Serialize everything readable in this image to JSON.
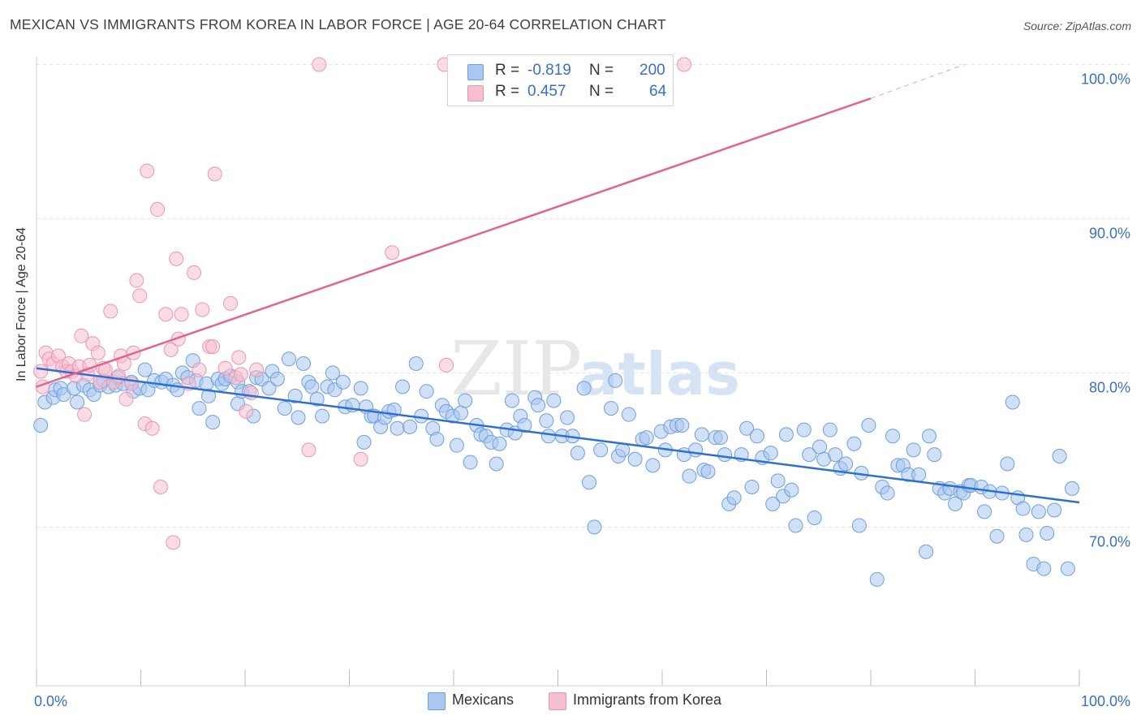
{
  "header": {
    "title": "MEXICAN VS IMMIGRANTS FROM KOREA IN LABOR FORCE | AGE 20-64 CORRELATION CHART",
    "source": "Source: ZipAtlas.com"
  },
  "watermark": {
    "zip": "ZIP",
    "atlas": "atlas"
  },
  "legend_top": {
    "rows": [
      {
        "r_label": "R =",
        "r_value": "-0.819",
        "n_label": "N =",
        "n_value": "200"
      },
      {
        "r_label": "R =",
        "r_value": "0.457",
        "n_label": "N =",
        "n_value": "64"
      }
    ]
  },
  "legend_bottom": {
    "items": [
      {
        "label": "Mexicans"
      },
      {
        "label": "Immigrants from Korea"
      }
    ]
  },
  "colors": {
    "blue_fill": "#a9c7f0",
    "blue_stroke": "#6f9fdc",
    "blue_line": "#2f6fcf",
    "pink_fill": "#f6bfd0",
    "pink_stroke": "#ec95b1",
    "pink_line": "#e06390",
    "tick_label": "#3a6fc4",
    "grid": "#e3e3e3"
  },
  "chart_data": {
    "type": "scatter",
    "title": "MEXICAN VS IMMIGRANTS FROM KOREA IN LABOR FORCE | AGE 20-64 CORRELATION CHART",
    "xlabel": "",
    "ylabel": "In Labor Force | Age 20-64",
    "xlim": [
      0,
      100
    ],
    "ylim": [
      59.7,
      100.5
    ],
    "x_tick_labels": [
      "0.0%",
      "100.0%"
    ],
    "y_ticks": [
      70,
      80,
      90,
      100
    ],
    "y_tick_labels": [
      "70.0%",
      "80.0%",
      "90.0%",
      "100.0%"
    ],
    "grid": true,
    "legend_position": "top-center",
    "series": [
      {
        "name": "Mexicans",
        "r": -0.819,
        "n": 200,
        "trend": {
          "x0": 0,
          "y0": 80.3,
          "x1": 100,
          "y1": 71.6
        },
        "points": [
          [
            0.4,
            76.6
          ],
          [
            0.8,
            78.1
          ],
          [
            1.6,
            78.4
          ],
          [
            1.8,
            78.9
          ],
          [
            2.3,
            79.0
          ],
          [
            2.6,
            78.6
          ],
          [
            3.6,
            79.0
          ],
          [
            3.9,
            78.1
          ],
          [
            4.5,
            79.2
          ],
          [
            5.1,
            78.9
          ],
          [
            5.5,
            78.6
          ],
          [
            6.1,
            79.2
          ],
          [
            6.4,
            79.5
          ],
          [
            6.9,
            79.1
          ],
          [
            7.6,
            79.2
          ],
          [
            7.8,
            79.7
          ],
          [
            8.3,
            79.3
          ],
          [
            9.1,
            79.4
          ],
          [
            9.3,
            78.8
          ],
          [
            9.9,
            79.0
          ],
          [
            10.4,
            80.2
          ],
          [
            10.7,
            78.9
          ],
          [
            11.3,
            79.5
          ],
          [
            12.0,
            79.4
          ],
          [
            12.4,
            79.6
          ],
          [
            13.1,
            79.2
          ],
          [
            13.5,
            78.9
          ],
          [
            14.0,
            80.0
          ],
          [
            14.5,
            79.7
          ],
          [
            15.0,
            80.8
          ],
          [
            15.3,
            79.5
          ],
          [
            15.6,
            77.7
          ],
          [
            16.3,
            79.3
          ],
          [
            16.5,
            78.5
          ],
          [
            16.9,
            76.8
          ],
          [
            17.4,
            79.6
          ],
          [
            17.8,
            79.3
          ],
          [
            18.1,
            79.6
          ],
          [
            18.6,
            79.8
          ],
          [
            19.3,
            79.4
          ],
          [
            19.3,
            78.0
          ],
          [
            19.7,
            78.8
          ],
          [
            20.4,
            78.8
          ],
          [
            20.8,
            77.2
          ],
          [
            21.1,
            79.7
          ],
          [
            21.6,
            79.6
          ],
          [
            22.3,
            79.0
          ],
          [
            22.6,
            80.1
          ],
          [
            23.1,
            79.6
          ],
          [
            23.8,
            77.7
          ],
          [
            24.2,
            80.9
          ],
          [
            24.8,
            78.5
          ],
          [
            25.1,
            77.1
          ],
          [
            25.6,
            80.6
          ],
          [
            26.1,
            79.4
          ],
          [
            26.4,
            79.1
          ],
          [
            26.9,
            78.3
          ],
          [
            27.4,
            77.2
          ],
          [
            27.9,
            79.1
          ],
          [
            28.4,
            80.0
          ],
          [
            28.6,
            78.9
          ],
          [
            29.4,
            79.4
          ],
          [
            29.6,
            77.8
          ],
          [
            30.3,
            77.9
          ],
          [
            31.1,
            79.0
          ],
          [
            31.4,
            75.5
          ],
          [
            31.6,
            77.8
          ],
          [
            32.1,
            77.2
          ],
          [
            32.4,
            77.2
          ],
          [
            33.0,
            76.5
          ],
          [
            33.4,
            77.1
          ],
          [
            33.8,
            77.5
          ],
          [
            34.3,
            77.6
          ],
          [
            34.6,
            76.4
          ],
          [
            35.1,
            79.1
          ],
          [
            35.8,
            76.5
          ],
          [
            36.4,
            80.6
          ],
          [
            36.9,
            77.2
          ],
          [
            37.4,
            78.8
          ],
          [
            38.0,
            76.4
          ],
          [
            38.4,
            75.7
          ],
          [
            38.9,
            77.9
          ],
          [
            39.3,
            77.5
          ],
          [
            39.9,
            77.2
          ],
          [
            40.3,
            75.3
          ],
          [
            40.7,
            77.4
          ],
          [
            41.1,
            78.2
          ],
          [
            41.6,
            74.2
          ],
          [
            42.2,
            76.6
          ],
          [
            42.6,
            76.0
          ],
          [
            43.1,
            75.9
          ],
          [
            43.6,
            75.5
          ],
          [
            44.1,
            74.1
          ],
          [
            44.4,
            75.4
          ],
          [
            45.1,
            76.3
          ],
          [
            45.6,
            78.2
          ],
          [
            45.9,
            76.1
          ],
          [
            46.4,
            77.2
          ],
          [
            46.8,
            76.6
          ],
          [
            47.8,
            78.4
          ],
          [
            48.1,
            77.9
          ],
          [
            48.9,
            76.9
          ],
          [
            49.1,
            75.9
          ],
          [
            49.6,
            78.2
          ],
          [
            50.4,
            75.9
          ],
          [
            50.9,
            77.1
          ],
          [
            51.4,
            75.9
          ],
          [
            51.9,
            74.8
          ],
          [
            52.5,
            79.0
          ],
          [
            53.0,
            72.9
          ],
          [
            53.5,
            70.0
          ],
          [
            54.1,
            75.0
          ],
          [
            55.1,
            77.7
          ],
          [
            55.5,
            79.5
          ],
          [
            55.8,
            74.6
          ],
          [
            56.2,
            75.0
          ],
          [
            56.8,
            77.3
          ],
          [
            57.4,
            74.4
          ],
          [
            58.1,
            75.7
          ],
          [
            58.5,
            75.8
          ],
          [
            59.1,
            74.0
          ],
          [
            59.9,
            76.2
          ],
          [
            60.3,
            75.0
          ],
          [
            60.8,
            76.5
          ],
          [
            61.4,
            76.6
          ],
          [
            61.9,
            76.6
          ],
          [
            62.1,
            74.7
          ],
          [
            62.6,
            73.3
          ],
          [
            63.2,
            75.0
          ],
          [
            63.8,
            76.0
          ],
          [
            64.0,
            73.7
          ],
          [
            64.4,
            73.6
          ],
          [
            65.1,
            75.8
          ],
          [
            65.6,
            75.8
          ],
          [
            66.0,
            74.7
          ],
          [
            66.4,
            71.5
          ],
          [
            66.9,
            71.9
          ],
          [
            67.6,
            74.7
          ],
          [
            68.1,
            76.4
          ],
          [
            68.6,
            72.6
          ],
          [
            69.1,
            75.9
          ],
          [
            69.6,
            74.5
          ],
          [
            70.4,
            74.8
          ],
          [
            70.6,
            71.5
          ],
          [
            71.1,
            73.0
          ],
          [
            71.6,
            72.0
          ],
          [
            71.9,
            76.0
          ],
          [
            72.4,
            72.4
          ],
          [
            72.8,
            70.1
          ],
          [
            73.6,
            76.3
          ],
          [
            74.1,
            74.7
          ],
          [
            74.6,
            70.6
          ],
          [
            75.1,
            75.2
          ],
          [
            75.5,
            74.4
          ],
          [
            76.1,
            76.3
          ],
          [
            76.6,
            74.7
          ],
          [
            77.1,
            73.8
          ],
          [
            77.6,
            74.1
          ],
          [
            78.4,
            75.4
          ],
          [
            78.9,
            70.1
          ],
          [
            79.1,
            73.5
          ],
          [
            79.8,
            76.6
          ],
          [
            80.6,
            66.6
          ],
          [
            81.1,
            72.6
          ],
          [
            81.6,
            72.2
          ],
          [
            82.1,
            75.9
          ],
          [
            82.6,
            74.0
          ],
          [
            83.1,
            74.0
          ],
          [
            83.6,
            73.4
          ],
          [
            84.1,
            75.0
          ],
          [
            84.6,
            73.4
          ],
          [
            85.3,
            68.4
          ],
          [
            85.6,
            75.9
          ],
          [
            86.1,
            74.7
          ],
          [
            86.6,
            72.5
          ],
          [
            87.1,
            72.2
          ],
          [
            87.6,
            72.5
          ],
          [
            88.1,
            71.5
          ],
          [
            88.6,
            72.3
          ],
          [
            88.9,
            72.2
          ],
          [
            89.4,
            72.7
          ],
          [
            89.6,
            72.7
          ],
          [
            90.6,
            72.6
          ],
          [
            90.9,
            71.0
          ],
          [
            91.4,
            72.3
          ],
          [
            92.1,
            69.4
          ],
          [
            92.6,
            72.2
          ],
          [
            93.1,
            74.1
          ],
          [
            93.6,
            78.1
          ],
          [
            94.1,
            71.9
          ],
          [
            94.6,
            71.2
          ],
          [
            94.9,
            69.5
          ],
          [
            95.6,
            67.6
          ],
          [
            96.1,
            71.0
          ],
          [
            96.6,
            67.3
          ],
          [
            96.9,
            69.6
          ],
          [
            97.6,
            71.1
          ],
          [
            98.1,
            74.6
          ],
          [
            98.9,
            67.3
          ],
          [
            99.3,
            72.5
          ]
        ]
      },
      {
        "name": "Immigrants from Korea",
        "r": 0.457,
        "n": 64,
        "trend": {
          "x0": 0,
          "y0": 79.1,
          "x1": 80,
          "y1": 97.8,
          "dash_to_x": 89,
          "dash_to_y": 100.0
        },
        "points": [
          [
            0.4,
            80.1
          ],
          [
            0.6,
            79.1
          ],
          [
            0.9,
            81.3
          ],
          [
            1.2,
            80.9
          ],
          [
            1.6,
            80.6
          ],
          [
            2.1,
            81.1
          ],
          [
            2.5,
            80.4
          ],
          [
            2.9,
            80.1
          ],
          [
            3.1,
            80.6
          ],
          [
            3.4,
            80.1
          ],
          [
            3.8,
            79.8
          ],
          [
            4.1,
            80.4
          ],
          [
            4.3,
            82.4
          ],
          [
            4.6,
            77.3
          ],
          [
            4.9,
            79.9
          ],
          [
            5.1,
            80.5
          ],
          [
            5.4,
            81.9
          ],
          [
            5.9,
            81.3
          ],
          [
            6.1,
            79.4
          ],
          [
            6.4,
            80.3
          ],
          [
            6.6,
            80.2
          ],
          [
            7.1,
            84.0
          ],
          [
            7.4,
            79.4
          ],
          [
            7.9,
            79.8
          ],
          [
            8.1,
            81.1
          ],
          [
            8.4,
            80.6
          ],
          [
            8.6,
            78.3
          ],
          [
            9.1,
            79.3
          ],
          [
            9.3,
            81.3
          ],
          [
            9.6,
            86.0
          ],
          [
            9.9,
            85.0
          ],
          [
            10.4,
            76.7
          ],
          [
            10.6,
            93.1
          ],
          [
            11.1,
            76.4
          ],
          [
            11.6,
            90.6
          ],
          [
            11.9,
            72.6
          ],
          [
            12.4,
            83.8
          ],
          [
            12.9,
            81.5
          ],
          [
            13.1,
            69.0
          ],
          [
            13.4,
            87.4
          ],
          [
            13.6,
            82.2
          ],
          [
            13.9,
            83.8
          ],
          [
            14.6,
            79.3
          ],
          [
            15.1,
            86.5
          ],
          [
            15.6,
            80.2
          ],
          [
            15.9,
            84.1
          ],
          [
            16.6,
            81.7
          ],
          [
            16.9,
            81.7
          ],
          [
            17.1,
            92.9
          ],
          [
            18.1,
            80.3
          ],
          [
            18.6,
            84.5
          ],
          [
            19.1,
            79.7
          ],
          [
            19.4,
            81.0
          ],
          [
            19.6,
            79.9
          ],
          [
            20.1,
            77.5
          ],
          [
            20.6,
            78.7
          ],
          [
            21.1,
            80.2
          ],
          [
            26.1,
            75.0
          ],
          [
            27.1,
            100.0
          ],
          [
            31.1,
            74.4
          ],
          [
            34.1,
            87.8
          ],
          [
            39.1,
            100.0
          ],
          [
            39.3,
            80.5
          ],
          [
            62.1,
            100.0
          ]
        ]
      }
    ]
  }
}
